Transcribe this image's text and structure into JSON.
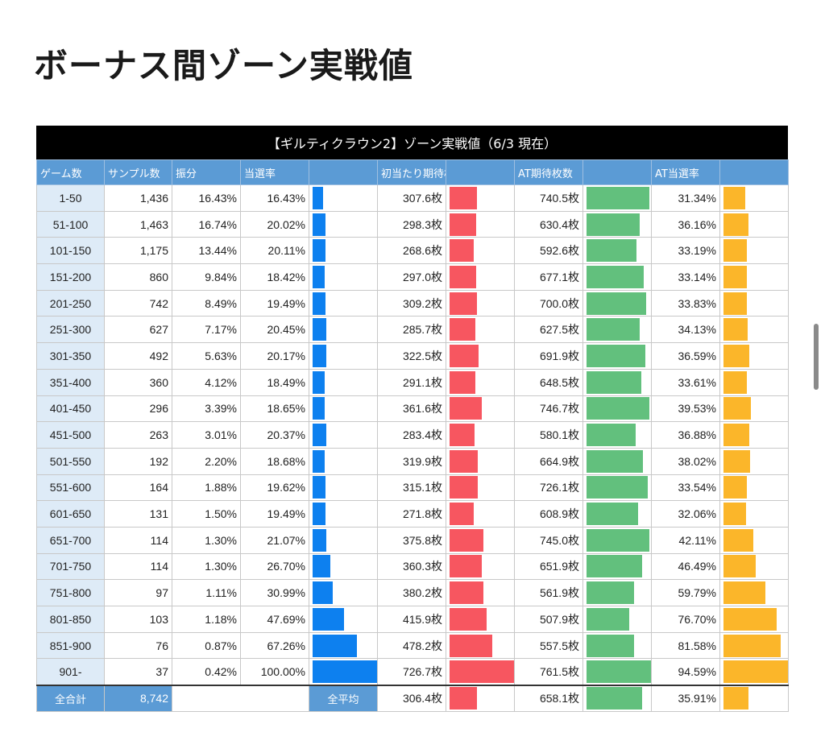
{
  "page": {
    "title": "ボーナス間ゾーン実戦値"
  },
  "table": {
    "title": "【ギルティクラウン2】ゾーン実戦値（6/3 現在）",
    "headers": [
      "ゲーム数",
      "サンプル数",
      "振分",
      "当選率",
      "",
      "初当たり期待枚数",
      "",
      "AT期待枚数",
      "",
      "AT当選率",
      ""
    ],
    "rows": [
      {
        "zone": "1-50",
        "samples": "1,436",
        "dist": "16.43%",
        "rate": "16.43%",
        "medals": "307.6枚",
        "at_medals": "740.5枚",
        "at_rate": "31.34%"
      },
      {
        "zone": "51-100",
        "samples": "1,463",
        "dist": "16.74%",
        "rate": "20.02%",
        "medals": "298.3枚",
        "at_medals": "630.4枚",
        "at_rate": "36.16%"
      },
      {
        "zone": "101-150",
        "samples": "1,175",
        "dist": "13.44%",
        "rate": "20.11%",
        "medals": "268.6枚",
        "at_medals": "592.6枚",
        "at_rate": "33.19%"
      },
      {
        "zone": "151-200",
        "samples": "860",
        "dist": "9.84%",
        "rate": "18.42%",
        "medals": "297.0枚",
        "at_medals": "677.1枚",
        "at_rate": "33.14%"
      },
      {
        "zone": "201-250",
        "samples": "742",
        "dist": "8.49%",
        "rate": "19.49%",
        "medals": "309.2枚",
        "at_medals": "700.0枚",
        "at_rate": "33.83%"
      },
      {
        "zone": "251-300",
        "samples": "627",
        "dist": "7.17%",
        "rate": "20.45%",
        "medals": "285.7枚",
        "at_medals": "627.5枚",
        "at_rate": "34.13%"
      },
      {
        "zone": "301-350",
        "samples": "492",
        "dist": "5.63%",
        "rate": "20.17%",
        "medals": "322.5枚",
        "at_medals": "691.9枚",
        "at_rate": "36.59%"
      },
      {
        "zone": "351-400",
        "samples": "360",
        "dist": "4.12%",
        "rate": "18.49%",
        "medals": "291.1枚",
        "at_medals": "648.5枚",
        "at_rate": "33.61%"
      },
      {
        "zone": "401-450",
        "samples": "296",
        "dist": "3.39%",
        "rate": "18.65%",
        "medals": "361.6枚",
        "at_medals": "746.7枚",
        "at_rate": "39.53%"
      },
      {
        "zone": "451-500",
        "samples": "263",
        "dist": "3.01%",
        "rate": "20.37%",
        "medals": "283.4枚",
        "at_medals": "580.1枚",
        "at_rate": "36.88%"
      },
      {
        "zone": "501-550",
        "samples": "192",
        "dist": "2.20%",
        "rate": "18.68%",
        "medals": "319.9枚",
        "at_medals": "664.9枚",
        "at_rate": "38.02%"
      },
      {
        "zone": "551-600",
        "samples": "164",
        "dist": "1.88%",
        "rate": "19.62%",
        "medals": "315.1枚",
        "at_medals": "726.1枚",
        "at_rate": "33.54%"
      },
      {
        "zone": "601-650",
        "samples": "131",
        "dist": "1.50%",
        "rate": "19.49%",
        "medals": "271.8枚",
        "at_medals": "608.9枚",
        "at_rate": "32.06%"
      },
      {
        "zone": "651-700",
        "samples": "114",
        "dist": "1.30%",
        "rate": "21.07%",
        "medals": "375.8枚",
        "at_medals": "745.0枚",
        "at_rate": "42.11%"
      },
      {
        "zone": "701-750",
        "samples": "114",
        "dist": "1.30%",
        "rate": "26.70%",
        "medals": "360.3枚",
        "at_medals": "651.9枚",
        "at_rate": "46.49%"
      },
      {
        "zone": "751-800",
        "samples": "97",
        "dist": "1.11%",
        "rate": "30.99%",
        "medals": "380.2枚",
        "at_medals": "561.9枚",
        "at_rate": "59.79%"
      },
      {
        "zone": "801-850",
        "samples": "103",
        "dist": "1.18%",
        "rate": "47.69%",
        "medals": "415.9枚",
        "at_medals": "507.9枚",
        "at_rate": "76.70%"
      },
      {
        "zone": "851-900",
        "samples": "76",
        "dist": "0.87%",
        "rate": "67.26%",
        "medals": "478.2枚",
        "at_medals": "557.5枚",
        "at_rate": "81.58%"
      },
      {
        "zone": "901-",
        "samples": "37",
        "dist": "0.42%",
        "rate": "100.00%",
        "medals": "726.7枚",
        "at_medals": "761.5枚",
        "at_rate": "94.59%"
      }
    ],
    "total": {
      "label": "全合計",
      "samples": "8,742",
      "avg_label": "全平均",
      "medals": "306.4枚",
      "at_medals": "658.1枚",
      "at_rate": "35.91%"
    },
    "bar_scale": {
      "rate": [
        0,
        100
      ],
      "medals": [
        0,
        740
      ],
      "at_medals": [
        0,
        780
      ],
      "at_rate": [
        0,
        94.59
      ]
    },
    "colors": {
      "rate_bar": "#0d80ef",
      "medals_bar": "#f75660",
      "at_medals_bar": "#62c07d",
      "at_rate_bar": "#fbb62a",
      "header_bg": "#5b9bd5",
      "zone_bg": "#deebf7"
    }
  }
}
